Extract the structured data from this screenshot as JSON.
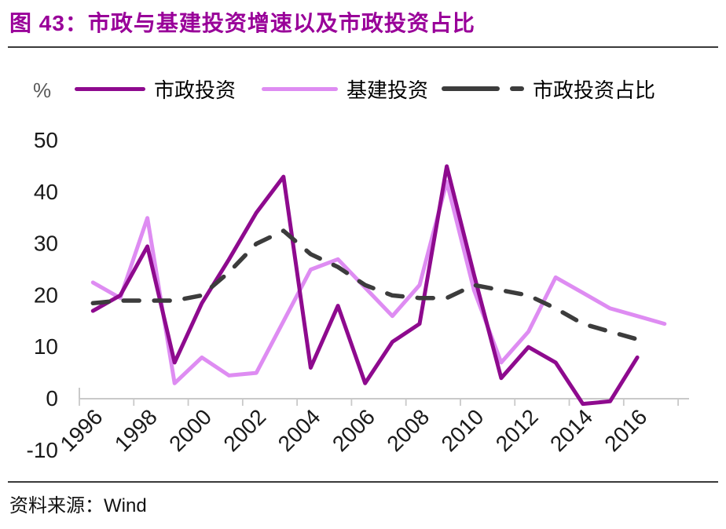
{
  "header": {
    "title": "图 43：市政与基建投资增速以及市政投资占比",
    "title_color": "#990099"
  },
  "footer": {
    "source_label": "资料来源：",
    "source_value": "Wind"
  },
  "chart_data": {
    "type": "line",
    "title": "市政与基建投资增速以及市政投资占比",
    "unit_label": "%",
    "grid": false,
    "legend_position": "top",
    "axis_color": "#c9c9c9",
    "label_color": "#1a1a1a",
    "x": [
      1996,
      1997,
      1998,
      1999,
      2000,
      2001,
      2002,
      2003,
      2004,
      2005,
      2006,
      2007,
      2008,
      2009,
      2010,
      2011,
      2012,
      2013,
      2014,
      2015,
      2016,
      2017
    ],
    "x_tick_labels": [
      "1996",
      "1998",
      "2000",
      "2002",
      "2004",
      "2006",
      "2008",
      "2010",
      "2012",
      "2014",
      "2016"
    ],
    "ylim": [
      -10,
      50
    ],
    "yticks": [
      50,
      40,
      30,
      20,
      10,
      0,
      -10
    ],
    "series": [
      {
        "name": "市政投资",
        "key": "municipal-investment",
        "color": "#8e0a8e",
        "dashed": false,
        "values": [
          17,
          20,
          29.5,
          7,
          18.5,
          27,
          36,
          43,
          6,
          18,
          3,
          11,
          14.5,
          45,
          24,
          4,
          10,
          7,
          -1,
          -0.5,
          8,
          null
        ]
      },
      {
        "name": "基建投资",
        "key": "infrastructure-investment",
        "color": "#de8cf2",
        "dashed": false,
        "values": [
          22.5,
          19.5,
          35,
          3,
          8,
          4.5,
          5,
          15,
          25,
          27,
          21.5,
          16,
          22,
          42,
          21,
          7,
          13,
          23.5,
          20.5,
          17.5,
          16,
          14.5
        ]
      },
      {
        "name": "市政投资占比",
        "key": "municipal-investment-share",
        "color": "#3c3c3c",
        "dashed": true,
        "values": [
          18.5,
          19,
          19,
          19,
          20,
          24.5,
          30,
          32.5,
          28,
          25.5,
          22,
          20,
          19.5,
          19.5,
          22,
          21,
          20,
          17.5,
          14.5,
          13,
          11.5,
          null
        ]
      }
    ]
  }
}
